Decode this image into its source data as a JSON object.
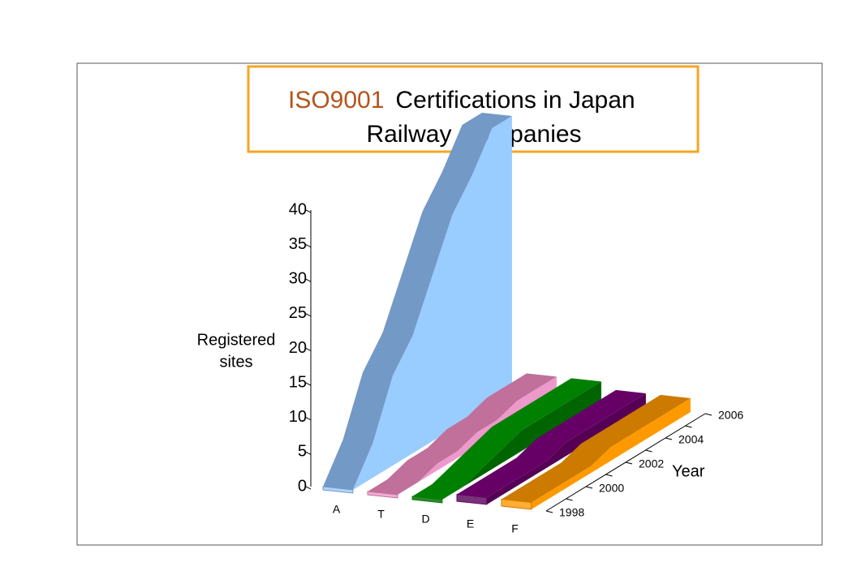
{
  "chart_data": {
    "type": "ribbon3d",
    "title": [
      "ISO9001",
      "Certifications in Japan",
      "Railway Companies"
    ],
    "y_label": [
      "Registered",
      "sites"
    ],
    "x_label": "Year",
    "x": [
      "1998",
      null,
      "2000",
      null,
      "2002",
      null,
      "2004",
      null,
      "2006"
    ],
    "ylim": [
      0,
      40
    ],
    "yticks": [
      0,
      5,
      10,
      15,
      20,
      25,
      30,
      35,
      40
    ],
    "series": [
      {
        "name": "A",
        "color": "#7399c6",
        "side_color": "#99ccff",
        "values": [
          0,
          5,
          13,
          17,
          24,
          31,
          35,
          40,
          40
        ]
      },
      {
        "name": "T",
        "color": "#c0709a",
        "side_color": "#ee99cc",
        "values": [
          0,
          0,
          1,
          1,
          2,
          2,
          3,
          3,
          3
        ]
      },
      {
        "name": "D",
        "color": "#008000",
        "side_color": "#006400",
        "values": [
          0,
          0,
          1,
          2,
          3,
          3,
          3,
          3,
          3
        ]
      },
      {
        "name": "E",
        "color": "#660066",
        "side_color": "#550055",
        "values": [
          1,
          1,
          1,
          1,
          2,
          2,
          2,
          2,
          2
        ]
      },
      {
        "name": "F",
        "color": "#cc7a00",
        "side_color": "#ff9900",
        "values": [
          1,
          1,
          1,
          1,
          2,
          2,
          2,
          2,
          2
        ]
      }
    ]
  }
}
